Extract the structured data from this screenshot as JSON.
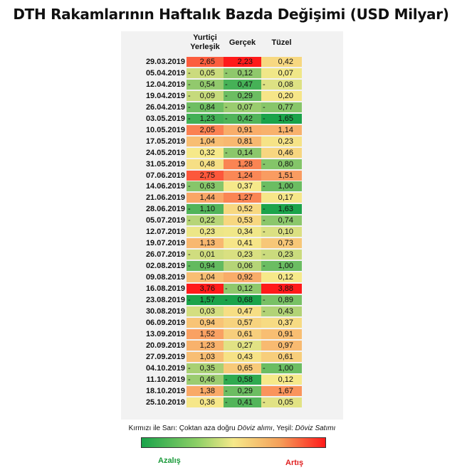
{
  "chart_data": {
    "type": "table",
    "title": "DTH Rakamlarının Haftalık Bazda Değişimi (USD Milyar)",
    "columns": [
      "Yurtiçi Yerleşik",
      "Gerçek",
      "Tüzel"
    ],
    "rows": [
      {
        "date": "29.03.2019",
        "values": [
          2.65,
          2.23,
          0.42
        ]
      },
      {
        "date": "05.04.2019",
        "values": [
          -0.05,
          -0.12,
          0.07
        ]
      },
      {
        "date": "12.04.2019",
        "values": [
          -0.54,
          -0.47,
          -0.08
        ]
      },
      {
        "date": "19.04.2019",
        "values": [
          -0.09,
          -0.29,
          0.2
        ]
      },
      {
        "date": "26.04.2019",
        "values": [
          -0.84,
          -0.07,
          -0.77
        ]
      },
      {
        "date": "03.05.2019",
        "values": [
          -1.23,
          -0.42,
          -1.65
        ]
      },
      {
        "date": "10.05.2019",
        "values": [
          2.05,
          0.91,
          1.14
        ]
      },
      {
        "date": "17.05.2019",
        "values": [
          1.04,
          0.81,
          0.23
        ]
      },
      {
        "date": "24.05.2019",
        "values": [
          0.32,
          -0.14,
          0.46
        ]
      },
      {
        "date": "31.05.2019",
        "values": [
          0.48,
          1.28,
          -0.8
        ]
      },
      {
        "date": "07.06.2019",
        "values": [
          2.75,
          1.24,
          1.51
        ]
      },
      {
        "date": "14.06.2019",
        "values": [
          -0.63,
          0.37,
          -1.0
        ]
      },
      {
        "date": "21.06.2019",
        "values": [
          1.44,
          1.27,
          0.17
        ]
      },
      {
        "date": "28.06.2019",
        "values": [
          -1.1,
          0.52,
          -1.63
        ]
      },
      {
        "date": "05.07.2019",
        "values": [
          -0.22,
          0.53,
          -0.74
        ]
      },
      {
        "date": "12.07.2019",
        "values": [
          0.23,
          0.34,
          -0.1
        ]
      },
      {
        "date": "19.07.2019",
        "values": [
          1.13,
          0.41,
          0.73
        ]
      },
      {
        "date": "26.07.2019",
        "values": [
          -0.01,
          0.23,
          -0.23
        ]
      },
      {
        "date": "02.08.2019",
        "values": [
          -0.94,
          0.06,
          -1.0
        ]
      },
      {
        "date": "09.08.2019",
        "values": [
          1.04,
          0.92,
          0.12
        ]
      },
      {
        "date": "16.08.2019",
        "values": [
          3.76,
          -0.12,
          3.88
        ]
      },
      {
        "date": "23.08.2019",
        "values": [
          -1.57,
          -0.68,
          -0.89
        ]
      },
      {
        "date": "30.08.2019",
        "values": [
          0.03,
          0.47,
          -0.43
        ]
      },
      {
        "date": "06.09.2019",
        "values": [
          0.94,
          0.57,
          0.37
        ]
      },
      {
        "date": "13.09.2019",
        "values": [
          1.52,
          0.61,
          0.91
        ]
      },
      {
        "date": "20.09.2019",
        "values": [
          1.23,
          0.27,
          0.97
        ]
      },
      {
        "date": "27.09.2019",
        "values": [
          1.03,
          0.43,
          0.61
        ]
      },
      {
        "date": "04.10.2019",
        "values": [
          -0.35,
          0.65,
          -1.0
        ]
      },
      {
        "date": "11.10.2019",
        "values": [
          -0.46,
          -0.58,
          0.12
        ]
      },
      {
        "date": "18.10.2019",
        "values": [
          1.38,
          -0.29,
          1.67
        ]
      },
      {
        "date": "25.10.2019",
        "values": [
          0.36,
          -0.41,
          -0.05
        ]
      }
    ],
    "color_scale": {
      "low": "#1aa34a",
      "mid": "#f6e98a",
      "high": "#ff1a1a"
    }
  },
  "legend": {
    "note_prefix": "Kırmızı ile Sarı: Çoktan aza doğru ",
    "note_buy": "Döviz alımı",
    "note_mid": ", Yeşil: ",
    "note_sell": "Döviz Satımı",
    "low_label": "Azalış",
    "high_label": "Artış"
  }
}
